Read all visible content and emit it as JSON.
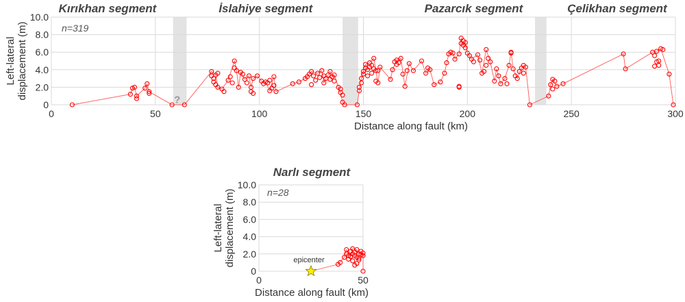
{
  "colors": {
    "marker": "#ff0000",
    "line": "#ff5555",
    "grid": "#d9d9d9",
    "gap": "#e3e3e3",
    "star_fill": "#ffee00",
    "star_stroke": "#8a7a00"
  },
  "chart_data": [
    {
      "type": "scatter",
      "xlabel": "Distance along fault (km)",
      "ylabel": "Left-lateral displacement (m)",
      "xlim": [
        0,
        300
      ],
      "ylim": [
        0,
        10
      ],
      "xticks": [
        "0",
        "50",
        "100",
        "150",
        "200",
        "250",
        "300"
      ],
      "yticks": [
        "0",
        "2.0",
        "4.0",
        "6.0",
        "8.0",
        "10.0"
      ],
      "grid": true,
      "annotation_n": "n=319",
      "segments": [
        {
          "label": "Kırıkhan segment",
          "x": 27
        },
        {
          "label": "İslahiye segment",
          "x": 103
        },
        {
          "label": "Pazarcık segment",
          "x": 203
        },
        {
          "label": "Çelikhan segment",
          "x": 272
        }
      ],
      "gaps": [
        [
          58.5,
          65
        ],
        [
          140,
          147.5
        ],
        [
          232.5,
          238
        ]
      ],
      "gap_marks": [
        {
          "label": "?",
          "x": 60.5,
          "y": 0.6
        }
      ],
      "points": [
        [
          10,
          0
        ],
        [
          38,
          1.2
        ],
        [
          39,
          1.9
        ],
        [
          40,
          2.0
        ],
        [
          41,
          1.0
        ],
        [
          41,
          0.7
        ],
        [
          45,
          1.9
        ],
        [
          46,
          2.4
        ],
        [
          47,
          1.5
        ],
        [
          47,
          1.3
        ],
        [
          58,
          0
        ],
        [
          64,
          0
        ],
        [
          77,
          3.8
        ],
        [
          77,
          3.3
        ],
        [
          78,
          3.0
        ],
        [
          78,
          2.6
        ],
        [
          79,
          3.4
        ],
        [
          79,
          2.3
        ],
        [
          80,
          2.0
        ],
        [
          80,
          3.6
        ],
        [
          82,
          1.8
        ],
        [
          83,
          1.5
        ],
        [
          85,
          2.8
        ],
        [
          86,
          3.2
        ],
        [
          87,
          2.5
        ],
        [
          88,
          4.2
        ],
        [
          88,
          5.0
        ],
        [
          89,
          3.9
        ],
        [
          90,
          2.0
        ],
        [
          91,
          3.7
        ],
        [
          92,
          3.5
        ],
        [
          93,
          2.9
        ],
        [
          94,
          2.5
        ],
        [
          95,
          3.3
        ],
        [
          96,
          2.0
        ],
        [
          96,
          1.5
        ],
        [
          97,
          3.0
        ],
        [
          97,
          1.3
        ],
        [
          99,
          3.3
        ],
        [
          101,
          2.7
        ],
        [
          102,
          2.4
        ],
        [
          103,
          2.6
        ],
        [
          104,
          2.5
        ],
        [
          105,
          1.6
        ],
        [
          105,
          2.8
        ],
        [
          106,
          1.9
        ],
        [
          107,
          2.2
        ],
        [
          107,
          3.2
        ],
        [
          108,
          1.5
        ],
        [
          116,
          2.4
        ],
        [
          119,
          2.6
        ],
        [
          122,
          3.0
        ],
        [
          123,
          3.2
        ],
        [
          124,
          3.5
        ],
        [
          125,
          3.8
        ],
        [
          125,
          2.3
        ],
        [
          126,
          3.3
        ],
        [
          127,
          2.8
        ],
        [
          128,
          3.6
        ],
        [
          129,
          3.1
        ],
        [
          130,
          3.9
        ],
        [
          131,
          3.3
        ],
        [
          131,
          2.5
        ],
        [
          132,
          3.0
        ],
        [
          133,
          3.4
        ],
        [
          134,
          3.8
        ],
        [
          134,
          2.9
        ],
        [
          135,
          3.2
        ],
        [
          136,
          2.7
        ],
        [
          136,
          3.4
        ],
        [
          138,
          2.0
        ],
        [
          139,
          1.8
        ],
        [
          139,
          1.4
        ],
        [
          140,
          1.1
        ],
        [
          140,
          0.3
        ],
        [
          141,
          0
        ],
        [
          147,
          0
        ],
        [
          148,
          1.6
        ],
        [
          148,
          2.0
        ],
        [
          149,
          2.5
        ],
        [
          149,
          3.0
        ],
        [
          150,
          3.5
        ],
        [
          150,
          3.8
        ],
        [
          151,
          4.2
        ],
        [
          151,
          4.6
        ],
        [
          152,
          3.3
        ],
        [
          152,
          4.0
        ],
        [
          153,
          4.8
        ],
        [
          153,
          4.3
        ],
        [
          154,
          3.6
        ],
        [
          154,
          4.5
        ],
        [
          155,
          5.3
        ],
        [
          155,
          4.1
        ],
        [
          156,
          3.9
        ],
        [
          156,
          2.7
        ],
        [
          157,
          2.5
        ],
        [
          157,
          3.9
        ],
        [
          158,
          4.3
        ],
        [
          163,
          2.9
        ],
        [
          164,
          4.0
        ],
        [
          165,
          4.9
        ],
        [
          166,
          5.1
        ],
        [
          166,
          4.6
        ],
        [
          167,
          4.8
        ],
        [
          168,
          5.3
        ],
        [
          169,
          3.5
        ],
        [
          170,
          2.1
        ],
        [
          171,
          3.9
        ],
        [
          172,
          4.7
        ],
        [
          174,
          3.9
        ],
        [
          178,
          5.0
        ],
        [
          180,
          3.6
        ],
        [
          181,
          4.2
        ],
        [
          182,
          4.0
        ],
        [
          184,
          2.3
        ],
        [
          187,
          2.6
        ],
        [
          189,
          3.6
        ],
        [
          190,
          4.8
        ],
        [
          191,
          5.8
        ],
        [
          192,
          6.0
        ],
        [
          193,
          5.9
        ],
        [
          194,
          5.2
        ],
        [
          196,
          5.8
        ],
        [
          196,
          2.1
        ],
        [
          196,
          2.0
        ],
        [
          197,
          7.0
        ],
        [
          197,
          7.6
        ],
        [
          198,
          6.8
        ],
        [
          198,
          7.3
        ],
        [
          199,
          6.5
        ],
        [
          199,
          7.1
        ],
        [
          200,
          5.9
        ],
        [
          201,
          5.6
        ],
        [
          202,
          5.2
        ],
        [
          203,
          4.9
        ],
        [
          205,
          5.7
        ],
        [
          206,
          5.1
        ],
        [
          207,
          3.6
        ],
        [
          208,
          3.8
        ],
        [
          209,
          6.3
        ],
        [
          209,
          4.5
        ],
        [
          210,
          5.3
        ],
        [
          211,
          4.9
        ],
        [
          213,
          2.7
        ],
        [
          214,
          4.1
        ],
        [
          215,
          3.3
        ],
        [
          216,
          2.4
        ],
        [
          218,
          3.0
        ],
        [
          219,
          2.4
        ],
        [
          220,
          4.5
        ],
        [
          221,
          6.0
        ],
        [
          221,
          5.9
        ],
        [
          222,
          4.1
        ],
        [
          223,
          3.3
        ],
        [
          224,
          3.0
        ],
        [
          225,
          3.8
        ],
        [
          226,
          4.2
        ],
        [
          227,
          4.5
        ],
        [
          227,
          3.6
        ],
        [
          228,
          4.3
        ],
        [
          230,
          0
        ],
        [
          239,
          1.0
        ],
        [
          240,
          2.3
        ],
        [
          241,
          2.9
        ],
        [
          241,
          1.8
        ],
        [
          242,
          2.7
        ],
        [
          243,
          2.1
        ],
        [
          246,
          2.4
        ],
        [
          275,
          5.8
        ],
        [
          276,
          4.1
        ],
        [
          289,
          6.0
        ],
        [
          290,
          5.6
        ],
        [
          290,
          4.4
        ],
        [
          291,
          6.1
        ],
        [
          291,
          4.9
        ],
        [
          292,
          5.0
        ],
        [
          292,
          4.5
        ],
        [
          293,
          6.4
        ],
        [
          294,
          6.3
        ],
        [
          297,
          3.5
        ],
        [
          299,
          0
        ]
      ],
      "path": [
        [
          10,
          0
        ],
        [
          38,
          1.2
        ],
        [
          39,
          1.9
        ],
        [
          40,
          2.0
        ],
        [
          41,
          1.0
        ],
        [
          45,
          1.9
        ],
        [
          46,
          2.4
        ],
        [
          47,
          1.5
        ],
        [
          58,
          0
        ],
        [
          64,
          0
        ],
        [
          77,
          3.8
        ],
        [
          79,
          3.4
        ],
        [
          80,
          2.0
        ],
        [
          82,
          1.8
        ],
        [
          85,
          2.8
        ],
        [
          88,
          5.0
        ],
        [
          89,
          3.9
        ],
        [
          90,
          2.0
        ],
        [
          91,
          3.7
        ],
        [
          93,
          2.9
        ],
        [
          95,
          3.3
        ],
        [
          96,
          2.0
        ],
        [
          97,
          3.0
        ],
        [
          99,
          3.3
        ],
        [
          101,
          2.7
        ],
        [
          103,
          2.6
        ],
        [
          105,
          1.6
        ],
        [
          107,
          3.2
        ],
        [
          108,
          1.5
        ],
        [
          116,
          2.4
        ],
        [
          119,
          2.6
        ],
        [
          122,
          3.0
        ],
        [
          125,
          3.8
        ],
        [
          128,
          3.6
        ],
        [
          130,
          3.9
        ],
        [
          131,
          2.5
        ],
        [
          133,
          3.4
        ],
        [
          134,
          3.8
        ],
        [
          135,
          3.2
        ],
        [
          136,
          3.4
        ],
        [
          138,
          2.0
        ],
        [
          139,
          1.4
        ],
        [
          140,
          0.3
        ],
        [
          141,
          0
        ],
        [
          147,
          0
        ],
        [
          148,
          1.6
        ],
        [
          149,
          3.0
        ],
        [
          150,
          3.8
        ],
        [
          151,
          4.6
        ],
        [
          153,
          4.8
        ],
        [
          155,
          5.3
        ],
        [
          156,
          3.9
        ],
        [
          157,
          2.5
        ],
        [
          158,
          4.3
        ],
        [
          163,
          2.9
        ],
        [
          164,
          4.0
        ],
        [
          166,
          5.1
        ],
        [
          168,
          5.3
        ],
        [
          170,
          2.1
        ],
        [
          172,
          4.7
        ],
        [
          174,
          3.9
        ],
        [
          178,
          5.0
        ],
        [
          180,
          3.6
        ],
        [
          182,
          4.0
        ],
        [
          184,
          2.3
        ],
        [
          187,
          2.6
        ],
        [
          189,
          3.6
        ],
        [
          191,
          5.8
        ],
        [
          193,
          5.9
        ],
        [
          194,
          5.2
        ],
        [
          196,
          5.8
        ],
        [
          197,
          7.6
        ],
        [
          198,
          6.8
        ],
        [
          199,
          7.1
        ],
        [
          200,
          5.9
        ],
        [
          202,
          5.2
        ],
        [
          205,
          5.7
        ],
        [
          207,
          3.6
        ],
        [
          209,
          6.3
        ],
        [
          211,
          4.9
        ],
        [
          213,
          2.7
        ],
        [
          214,
          4.1
        ],
        [
          216,
          2.4
        ],
        [
          218,
          3.0
        ],
        [
          220,
          4.5
        ],
        [
          221,
          6.0
        ],
        [
          222,
          4.1
        ],
        [
          224,
          3.0
        ],
        [
          226,
          4.2
        ],
        [
          228,
          4.3
        ],
        [
          230,
          0
        ],
        [
          239,
          1.0
        ],
        [
          240,
          2.3
        ],
        [
          241,
          2.9
        ],
        [
          243,
          2.1
        ],
        [
          246,
          2.4
        ],
        [
          275,
          5.8
        ],
        [
          276,
          4.1
        ],
        [
          289,
          6.0
        ],
        [
          291,
          6.1
        ],
        [
          293,
          6.4
        ],
        [
          297,
          3.5
        ],
        [
          299,
          0
        ]
      ]
    },
    {
      "type": "scatter",
      "title": "Narlı segment",
      "xlabel": "Distance along fault (km)",
      "ylabel": "Left-lateral displacement (m)",
      "xlim": [
        0,
        50
      ],
      "ylim": [
        0,
        10
      ],
      "xticks": [
        "0",
        "50"
      ],
      "yticks": [
        "0",
        "2.0",
        "4.0",
        "6.0",
        "8.0",
        "10.0"
      ],
      "grid": true,
      "annotation_n": "n=28",
      "epicenter": {
        "label": "epicenter",
        "x": 25,
        "y": 0
      },
      "points": [
        [
          38,
          0.8
        ],
        [
          39,
          1.0
        ],
        [
          41,
          1.6
        ],
        [
          42,
          2.0
        ],
        [
          42,
          2.5
        ],
        [
          43,
          1.4
        ],
        [
          43,
          1.8
        ],
        [
          44,
          1.7
        ],
        [
          44,
          2.3
        ],
        [
          45,
          2.0
        ],
        [
          45,
          2.6
        ],
        [
          45,
          1.2
        ],
        [
          46,
          1.8
        ],
        [
          46,
          2.2
        ],
        [
          46,
          0.7
        ],
        [
          47,
          2.5
        ],
        [
          47,
          1.6
        ],
        [
          47,
          0.9
        ],
        [
          48,
          2.0
        ],
        [
          48,
          1.5
        ],
        [
          48,
          1.3
        ],
        [
          49,
          2.3
        ],
        [
          49,
          1.9
        ],
        [
          50,
          1.8
        ],
        [
          50,
          2.1
        ],
        [
          50,
          0
        ]
      ],
      "path": [
        [
          25,
          0
        ],
        [
          38,
          0.8
        ],
        [
          41,
          1.6
        ],
        [
          42,
          2.5
        ],
        [
          44,
          1.7
        ],
        [
          45,
          2.6
        ],
        [
          47,
          2.5
        ],
        [
          48,
          2.0
        ],
        [
          49,
          2.3
        ],
        [
          50,
          1.8
        ],
        [
          50,
          0
        ]
      ]
    }
  ]
}
